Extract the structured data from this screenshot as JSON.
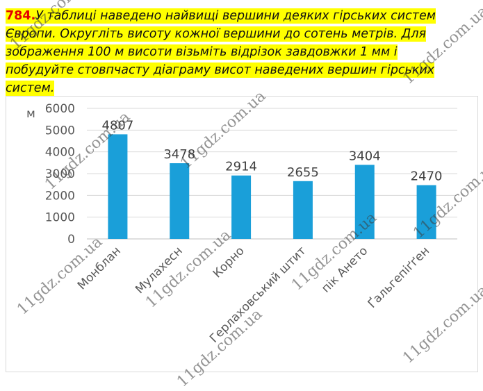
{
  "task": {
    "number": "784.",
    "lines": [
      "У таблиці наведено найвищі вершини деяких гірських систем",
      "Європи. Округліть висоту кожної вершини до сотень метрів. Для",
      "зображення 100 м висоти візьміть відрізок завдовжки 1 мм і",
      "побудуйте стовпчасту діаграму висот наведених вершин гірських",
      "систем."
    ]
  },
  "chart_data": {
    "type": "bar",
    "ylabel": "м",
    "ylim": [
      0,
      6000
    ],
    "yticks": [
      0,
      1000,
      2000,
      3000,
      4000,
      5000,
      6000
    ],
    "grid": true,
    "categories": [
      "Монблан",
      "Мулахесн",
      "Корно",
      "Герлаховський штит",
      "пік Ането",
      "Ґальгепіґґен"
    ],
    "values": [
      4807,
      3478,
      2914,
      2655,
      3404,
      2470
    ],
    "bar_color": "#1a9fd9"
  },
  "watermarks": [
    "11gdz.com.ua",
    "11gdz.com.ua",
    "11gdz.com.ua",
    "11gdz.com.ua",
    "11gdz.com.ua",
    "11gdz.com.ua",
    "11gdz.com.ua",
    "11gdz.com.ua",
    "11gdz.com.ua",
    "11gdz.com.ua"
  ]
}
